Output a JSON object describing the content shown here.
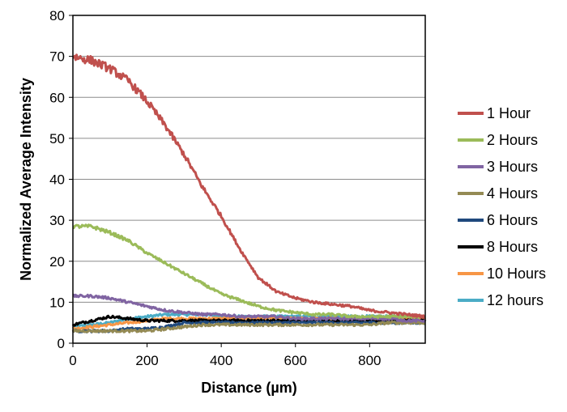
{
  "chart_data": {
    "type": "line",
    "xlabel": "Distance (µm)",
    "ylabel": "Normalized Average Intensity",
    "xlim": [
      0,
      950
    ],
    "ylim": [
      0,
      80
    ],
    "xticks": [
      0,
      200,
      400,
      600,
      800
    ],
    "yticks": [
      0,
      10,
      20,
      30,
      40,
      50,
      60,
      70,
      80
    ],
    "grid": "horizontal",
    "legend_position": "right",
    "series": [
      {
        "name": "1 Hour",
        "color": "#c0504d",
        "x": [
          0,
          50,
          100,
          150,
          200,
          250,
          300,
          350,
          400,
          450,
          500,
          550,
          600,
          650,
          700,
          750,
          800,
          850,
          900,
          950
        ],
        "y": [
          70,
          69,
          67,
          64,
          59,
          53,
          46,
          38,
          31,
          23,
          16,
          12.5,
          11,
          10,
          9.5,
          9,
          8,
          7.5,
          7,
          6.5
        ]
      },
      {
        "name": "2 Hours",
        "color": "#9bbb59",
        "x": [
          0,
          50,
          100,
          150,
          200,
          250,
          300,
          350,
          400,
          450,
          500,
          550,
          600,
          650,
          700,
          750,
          800,
          850,
          900,
          950
        ],
        "y": [
          28.5,
          28.5,
          27,
          25,
          22,
          19.5,
          17,
          14.5,
          12,
          10.5,
          9,
          8,
          7.5,
          7,
          7,
          6.5,
          6.5,
          6.5,
          6.5,
          6.5
        ]
      },
      {
        "name": "3 Hours",
        "color": "#8064a2",
        "x": [
          0,
          50,
          100,
          150,
          200,
          250,
          300,
          350,
          400,
          450,
          500,
          550,
          600,
          650,
          700,
          750,
          800,
          850,
          900,
          950
        ],
        "y": [
          11.5,
          11.5,
          11,
          10,
          9,
          8,
          7.5,
          7,
          7,
          6.5,
          6.5,
          6.5,
          6,
          6,
          6,
          6,
          6,
          6,
          5.5,
          5.5
        ]
      },
      {
        "name": "4 Hours",
        "color": "#948a54",
        "x": [
          0,
          50,
          100,
          150,
          200,
          250,
          300,
          350,
          400,
          450,
          500,
          550,
          600,
          650,
          700,
          750,
          800,
          850,
          900,
          950
        ],
        "y": [
          3,
          3,
          3,
          3,
          3,
          3.5,
          4,
          4.5,
          4.5,
          4.5,
          4.5,
          4.5,
          4.5,
          4.5,
          4.5,
          4.5,
          4.5,
          5,
          5,
          5
        ]
      },
      {
        "name": "6 Hours",
        "color": "#1f497d",
        "x": [
          0,
          50,
          100,
          150,
          200,
          250,
          300,
          350,
          400,
          450,
          500,
          550,
          600,
          650,
          700,
          750,
          800,
          850,
          900,
          950
        ],
        "y": [
          3,
          3,
          3,
          3.5,
          3.5,
          4,
          5,
          5,
          5,
          5,
          5,
          5,
          5,
          5,
          5,
          5,
          5,
          5,
          5,
          5
        ]
      },
      {
        "name": "8 Hours",
        "color": "#000000",
        "x": [
          0,
          50,
          100,
          150,
          200,
          250,
          300,
          350,
          400,
          450,
          500,
          550,
          600,
          650,
          700,
          750,
          800,
          850,
          900,
          950
        ],
        "y": [
          4.5,
          5.5,
          6.5,
          6,
          5.5,
          5.5,
          5.5,
          5.5,
          5.5,
          5.5,
          5.5,
          5.5,
          5.5,
          5.5,
          5.5,
          5.5,
          5.5,
          5.5,
          5.5,
          5.5
        ]
      },
      {
        "name": "10 Hours",
        "color": "#f79646",
        "x": [
          0,
          50,
          100,
          150,
          200,
          250,
          300,
          350,
          400,
          450,
          500,
          550,
          600,
          650,
          700,
          750,
          800,
          850,
          900,
          950
        ],
        "y": [
          3.5,
          4,
          4.5,
          5,
          5.5,
          6,
          6,
          6,
          6,
          6,
          6,
          6,
          6,
          6,
          6,
          6,
          6,
          6,
          6,
          6
        ]
      },
      {
        "name": "12 hours",
        "color": "#4bacc6",
        "x": [
          0,
          50,
          100,
          150,
          200,
          250,
          300,
          350,
          400,
          450,
          500,
          550,
          600,
          650,
          700,
          750,
          800,
          850,
          900,
          950
        ],
        "y": [
          4,
          4.5,
          5,
          6,
          6.5,
          7,
          7,
          7,
          6.5,
          6.5,
          6.5,
          6.5,
          6.5,
          6.5,
          6.5,
          6.5,
          6.5,
          6.5,
          6.5,
          6.5
        ]
      }
    ]
  }
}
